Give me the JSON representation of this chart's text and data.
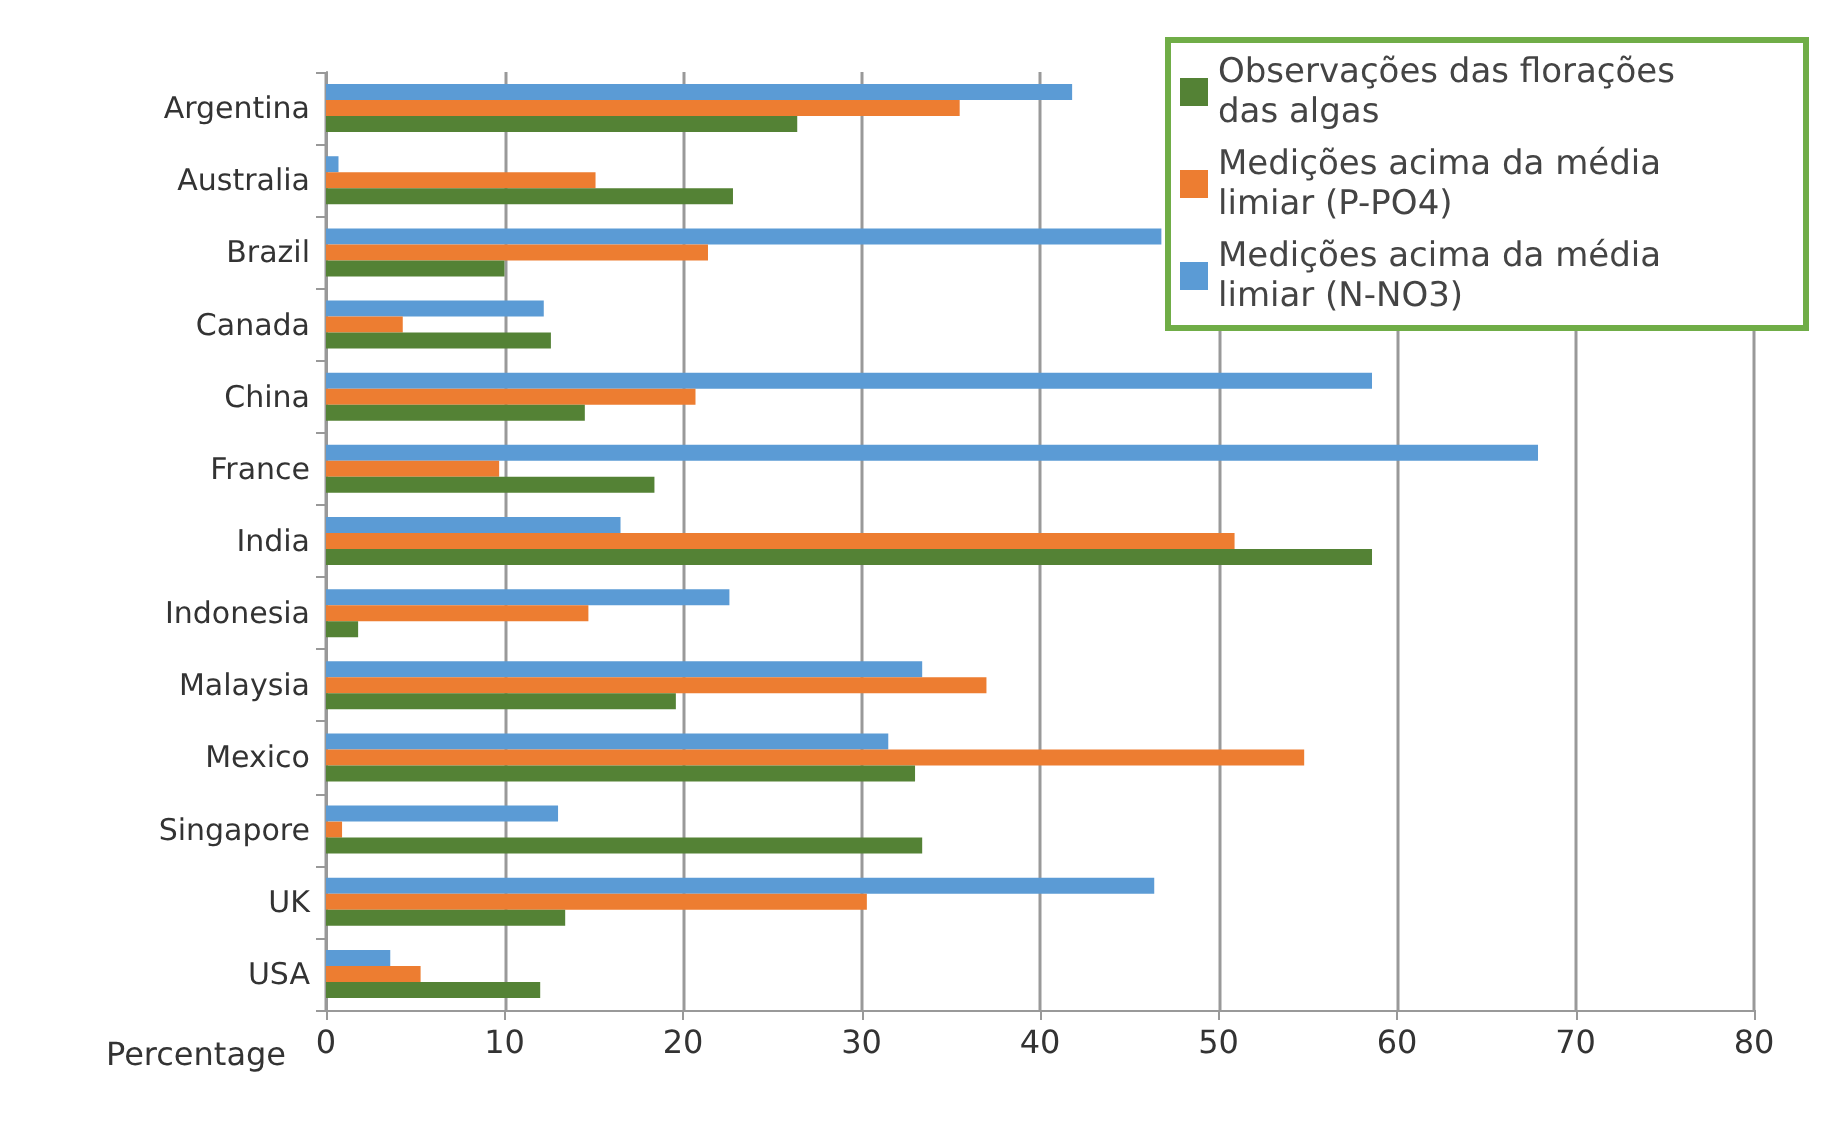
{
  "chart_data": {
    "type": "bar",
    "orientation": "horizontal",
    "xlabel": "Percentage",
    "categories": [
      "Argentina",
      "Australia",
      "Brazil",
      "Canada",
      "China",
      "France",
      "India",
      "Indonesia",
      "Malaysia",
      "Mexico",
      "Singapore",
      "UK",
      "USA"
    ],
    "series": [
      {
        "name": "Observações das florações das algas",
        "color": "#548235",
        "values": [
          26.4,
          22.8,
          10.0,
          12.6,
          14.5,
          18.4,
          58.6,
          1.8,
          19.6,
          33.0,
          33.4,
          13.4,
          12.0
        ]
      },
      {
        "name": "Medições acima da média limiar (P-PO4)",
        "color": "#ed7d31",
        "values": [
          35.5,
          15.1,
          21.4,
          4.3,
          20.7,
          9.7,
          50.9,
          14.7,
          37.0,
          54.8,
          0.9,
          30.3,
          5.3
        ]
      },
      {
        "name": "Medições acima da média limiar (N-NO3)",
        "color": "#5b9bd5",
        "values": [
          41.8,
          0.7,
          46.8,
          12.2,
          58.6,
          67.9,
          16.5,
          22.6,
          33.4,
          31.5,
          13.0,
          46.4,
          3.6
        ]
      }
    ],
    "xlim": [
      0,
      80
    ],
    "xticks": [
      0,
      10,
      20,
      30,
      40,
      50,
      60,
      70,
      80
    ],
    "grid": "x",
    "legend": "top right"
  }
}
